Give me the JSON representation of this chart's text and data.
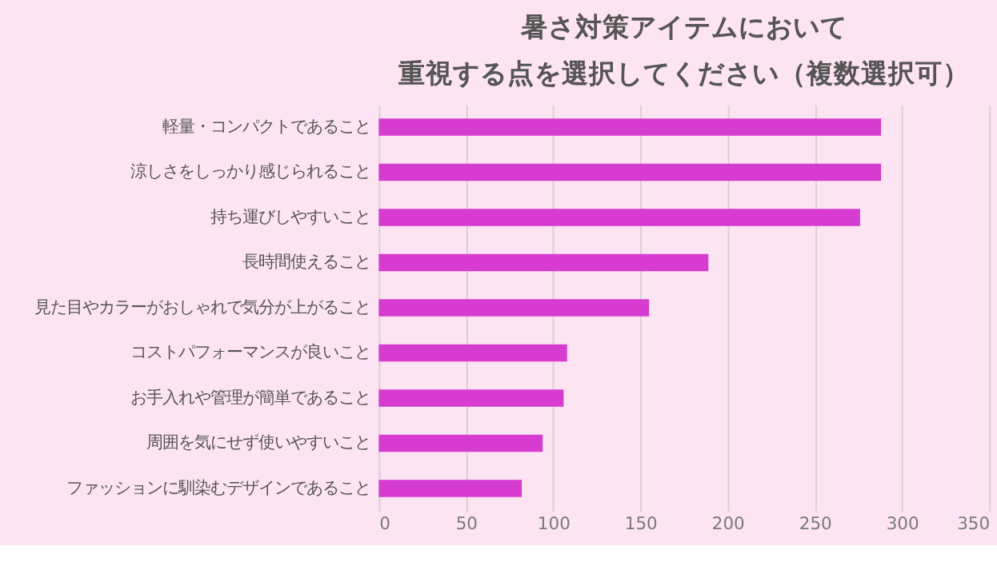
{
  "chart_data": {
    "type": "bar",
    "orientation": "horizontal",
    "title": [
      "暑さ対策アイテムにおいて",
      "重視する点を選択してください（複数選択可）"
    ],
    "categories": [
      "軽量・コンパクトであること",
      "涼しさをしっかり感じられること",
      "持ち運びしやすいこと",
      "長時間使えること",
      "見た目やカラーがおしゃれで気分が上がること",
      "コストパフォーマンスが良いこと",
      "お手入れや管理が簡単であること",
      "周囲を気にせず使いやすいこと",
      "ファッションに馴染むデザインであること"
    ],
    "values": [
      288,
      288,
      276,
      189,
      155,
      108,
      106,
      94,
      82
    ],
    "color": "#d63ccf",
    "xlim": [
      0,
      350
    ],
    "xticks": [
      0,
      50,
      100,
      150,
      200,
      250,
      300,
      350
    ],
    "grid": "x"
  }
}
